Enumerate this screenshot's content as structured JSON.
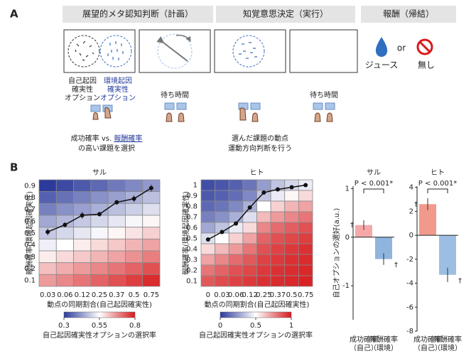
{
  "panel_a": {
    "label": "A",
    "stages": [
      "展望的メタ認知判断（計画）",
      "知覚意思決定（実行）",
      "報酬（帰結）"
    ],
    "option_self": [
      "自己起因",
      "確実性",
      "オプション"
    ],
    "option_env": [
      "環境起因",
      "確実性",
      "オプション"
    ],
    "wait": [
      "待ち時間",
      "待ち時間"
    ],
    "reward": {
      "juice": "ジュース",
      "or": "or",
      "none": "無し"
    },
    "choose_caption": [
      "成功確率",
      "vs.",
      "報酬確率",
      "の高い課題を選択"
    ],
    "perform_caption": [
      "選んだ課題の動点",
      "運動方向判断を行う"
    ]
  },
  "panel_b_label": "B",
  "chart_data": [
    {
      "type": "heatmap",
      "title": "サル",
      "x": [
        0.03,
        0.06,
        0.12,
        0.25,
        0.37,
        0.5,
        0.75
      ],
      "y": [
        0.9,
        0.8,
        0.7,
        0.6,
        0.5,
        0.4,
        0.3,
        0.2,
        0.1
      ],
      "ylim": [
        0.05,
        0.95
      ],
      "z": [
        [
          0.3,
          0.32,
          0.34,
          0.36,
          0.38,
          0.4,
          0.42
        ],
        [
          0.35,
          0.37,
          0.39,
          0.41,
          0.43,
          0.45,
          0.47
        ],
        [
          0.39,
          0.41,
          0.43,
          0.45,
          0.47,
          0.49,
          0.51
        ],
        [
          0.44,
          0.46,
          0.48,
          0.5,
          0.52,
          0.54,
          0.56
        ],
        [
          0.48,
          0.5,
          0.52,
          0.54,
          0.56,
          0.58,
          0.6
        ],
        [
          0.53,
          0.55,
          0.57,
          0.59,
          0.61,
          0.63,
          0.65
        ],
        [
          0.57,
          0.59,
          0.61,
          0.63,
          0.65,
          0.67,
          0.69
        ],
        [
          0.62,
          0.64,
          0.66,
          0.68,
          0.7,
          0.72,
          0.74
        ],
        [
          0.66,
          0.68,
          0.7,
          0.72,
          0.74,
          0.76,
          0.78
        ]
      ],
      "line": {
        "values": [
          0.51,
          0.57,
          0.65,
          0.66,
          0.76,
          0.79,
          0.88
        ],
        "errors": [
          0.03,
          0.02,
          0.03,
          0.02,
          0.02,
          0.03,
          0.03
        ]
      },
      "xlabel": "動点の同期割合(自己起因確実性)",
      "ylabel": "報酬確率(環境起因確実性)",
      "colorbar": {
        "label": "自己起因確実性オプションの選択率",
        "lim": [
          0.3,
          0.8
        ],
        "ticks": [
          0.3,
          0.55,
          0.8
        ]
      }
    },
    {
      "type": "heatmap",
      "title": "ヒト",
      "x": [
        0,
        0.03,
        0.06,
        0.12,
        0.25,
        0.37,
        0.5,
        0.75
      ],
      "y": [
        1,
        0.9,
        0.8,
        0.7,
        0.6,
        0.5,
        0.4,
        0.3,
        0.2,
        0.1
      ],
      "ylim": [
        0.05,
        1.05
      ],
      "z": [
        [
          0.05,
          0.07,
          0.1,
          0.15,
          0.25,
          0.35,
          0.4,
          0.45
        ],
        [
          0.08,
          0.1,
          0.13,
          0.2,
          0.35,
          0.45,
          0.52,
          0.58
        ],
        [
          0.12,
          0.15,
          0.2,
          0.3,
          0.5,
          0.6,
          0.66,
          0.7
        ],
        [
          0.18,
          0.22,
          0.3,
          0.42,
          0.65,
          0.72,
          0.76,
          0.8
        ],
        [
          0.28,
          0.35,
          0.45,
          0.58,
          0.76,
          0.82,
          0.85,
          0.88
        ],
        [
          0.42,
          0.5,
          0.6,
          0.7,
          0.84,
          0.88,
          0.9,
          0.92
        ],
        [
          0.58,
          0.65,
          0.72,
          0.8,
          0.88,
          0.91,
          0.93,
          0.95
        ],
        [
          0.7,
          0.76,
          0.82,
          0.86,
          0.91,
          0.93,
          0.95,
          0.96
        ],
        [
          0.8,
          0.84,
          0.88,
          0.9,
          0.93,
          0.95,
          0.96,
          0.97
        ],
        [
          0.86,
          0.89,
          0.91,
          0.93,
          0.95,
          0.96,
          0.97,
          0.98
        ]
      ],
      "line": {
        "values": [
          0.49,
          0.56,
          0.64,
          0.79,
          0.93,
          0.96,
          0.98,
          1.0
        ],
        "errors": [
          0.01,
          0.01,
          0.01,
          0.01,
          0.01,
          0.01,
          0.01,
          0.01
        ]
      },
      "xlabel": "動点の同期割合(自己起因確実性)",
      "ylabel": "報酬確率(環境起因確実性)",
      "colorbar": {
        "label": "自己起因確実性オプションの選択率",
        "lim": [
          0,
          1
        ],
        "ticks": [
          0,
          0.5,
          1
        ]
      }
    },
    {
      "type": "bar",
      "title": "サル",
      "ylabel": "自己オプションの選好(a.u.)",
      "categories": [
        [
          "成功確率",
          "（自己）"
        ],
        [
          "報酬確率",
          "（環境）"
        ]
      ],
      "values": [
        0.25,
        -0.45
      ],
      "errors": [
        0.1,
        0.12
      ],
      "colors": [
        "#f4a9a8",
        "#8fb4de"
      ],
      "ylim": [
        -1.7,
        1.05
      ],
      "yticks": [
        -1,
        0,
        1
      ],
      "annotation": "P < 0.001*",
      "dagger": "†"
    },
    {
      "type": "bar",
      "title": "ヒト",
      "categories": [
        [
          "成功確率",
          "（自己）"
        ],
        [
          "報酬確率",
          "（環境）"
        ]
      ],
      "values": [
        2.6,
        -3.3
      ],
      "errors": [
        0.5,
        0.6
      ],
      "colors": [
        "#f19a8c",
        "#9cbee3"
      ],
      "ylim": [
        -8,
        4.1
      ],
      "yticks": [
        -8,
        -6,
        -4,
        -2,
        0,
        2,
        4
      ],
      "annotation": "P < 0.001*",
      "dagger": "†"
    }
  ]
}
